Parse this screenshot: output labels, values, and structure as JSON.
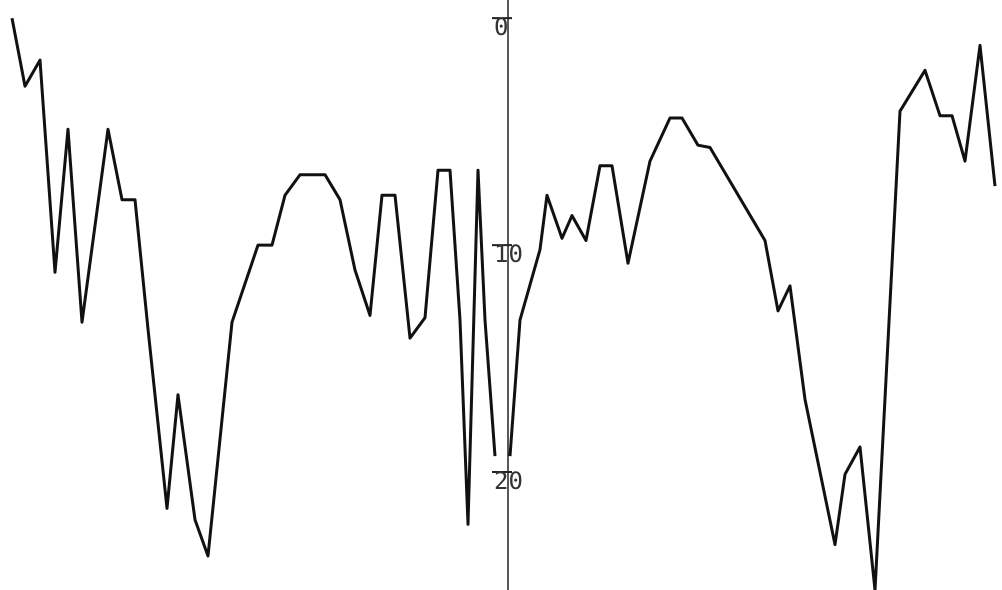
{
  "chart_data": {
    "type": "line",
    "color": "#111111",
    "y_inverted": true,
    "xlim": [
      -508,
      494
    ],
    "ylim": [
      -0.8,
      25.2
    ],
    "yticks": [
      0,
      10,
      20
    ],
    "x": [
      -496,
      -483,
      -468,
      -453,
      -440,
      -426,
      -400,
      -386,
      -373,
      -360,
      -341,
      -330,
      -313,
      -300,
      -276,
      -250,
      -236,
      -223,
      -208,
      -183,
      -168,
      -153,
      -138,
      -126,
      -113,
      -98,
      -83,
      -70,
      -58,
      -48,
      -40,
      -30,
      -23,
      -13,
      -6,
      2,
      12,
      32,
      39,
      54,
      64,
      78,
      92,
      104,
      120,
      142,
      162,
      174,
      190,
      202,
      257,
      270,
      282,
      297,
      327,
      337,
      352,
      367,
      392,
      417,
      432,
      444,
      457,
      472,
      487
    ],
    "values": [
      0,
      3.0,
      1.85,
      11.2,
      4.9,
      13.4,
      4.9,
      8.0,
      8.0,
      13.7,
      21.6,
      16.6,
      22.1,
      23.7,
      13.4,
      10.0,
      10.0,
      7.8,
      6.9,
      6.9,
      8.0,
      11.1,
      13.1,
      7.8,
      7.8,
      14.1,
      13.2,
      6.7,
      6.7,
      13.3,
      22.3,
      6.7,
      13.3,
      19.3,
      null,
      19.3,
      13.3,
      10.2,
      7.8,
      9.7,
      8.7,
      9.8,
      6.5,
      6.5,
      10.8,
      6.3,
      4.4,
      4.4,
      5.6,
      5.7,
      9.8,
      12.9,
      11.8,
      16.8,
      23.2,
      20.1,
      18.9,
      25.2,
      4.1,
      2.3,
      4.3,
      4.3,
      6.3,
      1.2,
      7.4
    ]
  }
}
